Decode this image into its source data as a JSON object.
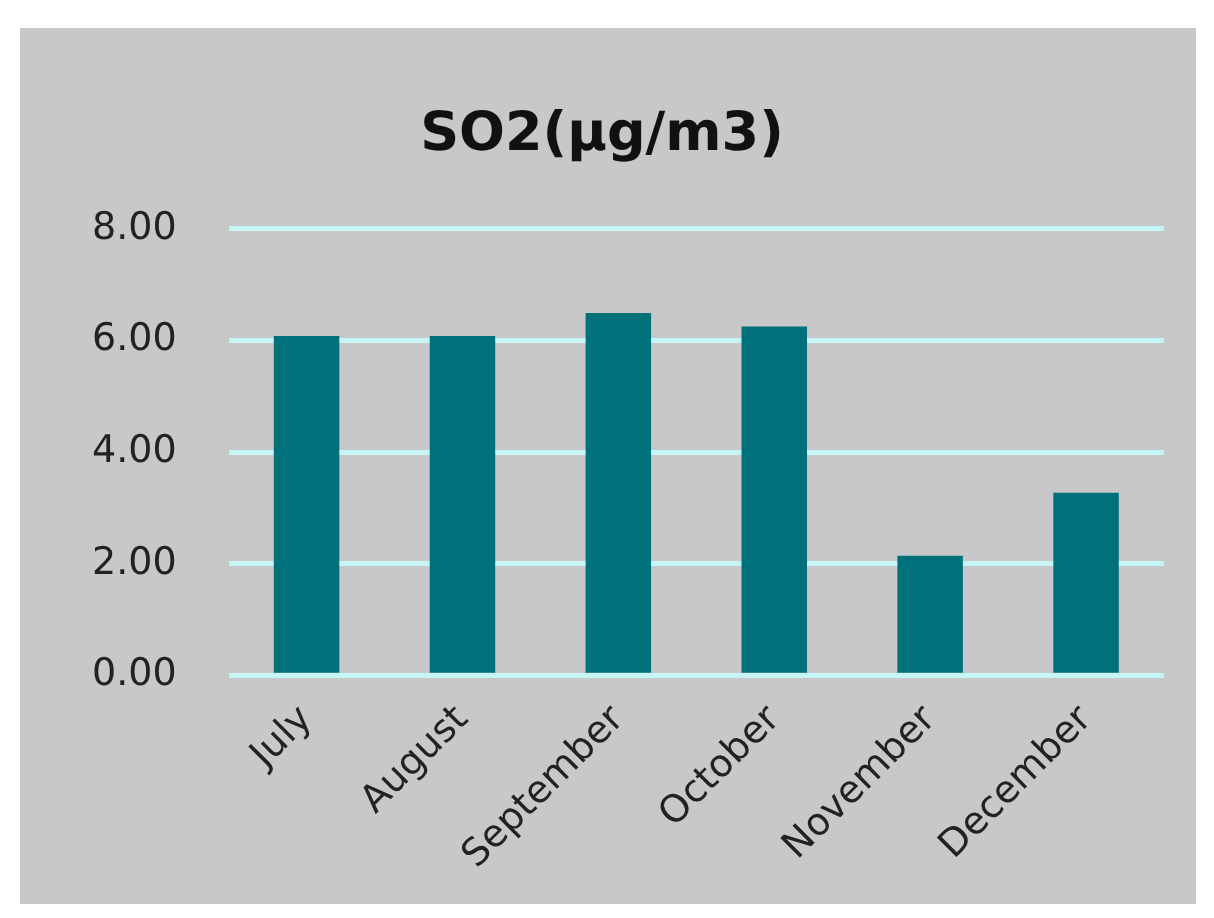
{
  "chart_data": {
    "type": "bar",
    "title": "SO2(µg/m3)",
    "categories": [
      "July",
      "August",
      "September",
      "October",
      "November",
      "December"
    ],
    "values": [
      6.08,
      6.08,
      6.49,
      6.25,
      2.14,
      3.27
    ],
    "color": "#00717a",
    "ylim": [
      0,
      8
    ],
    "yticks": [
      {
        "value": 0,
        "label": "0.00"
      },
      {
        "value": 2,
        "label": "2.00"
      },
      {
        "value": 4,
        "label": "4.00"
      },
      {
        "value": 6,
        "label": "6.00"
      },
      {
        "value": 8,
        "label": "8.00"
      }
    ],
    "grid": "y",
    "legend": false
  }
}
